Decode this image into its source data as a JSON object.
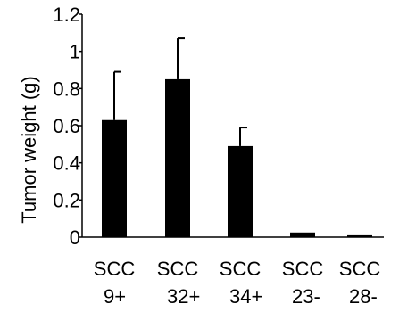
{
  "chart_data": {
    "type": "bar",
    "categories": [
      [
        "SCC",
        "9+"
      ],
      [
        "SCC",
        "32+"
      ],
      [
        "SCC",
        "34+"
      ],
      [
        "SCC",
        "23-"
      ],
      [
        "SCC",
        "28-"
      ]
    ],
    "values": [
      0.63,
      0.85,
      0.49,
      0.025,
      0.01
    ],
    "error_upper": [
      0.26,
      0.22,
      0.1,
      0.0,
      0.0
    ],
    "ylabel": "Tumor weight  (g)",
    "xlabel": "",
    "ylim": [
      0,
      1.2
    ],
    "yticks": [
      0,
      0.2,
      0.4,
      0.6,
      0.8,
      1,
      1.2
    ],
    "ytick_labels": [
      "0",
      "0.2",
      "0.4",
      "0.6",
      "0.8",
      "1",
      "1.2"
    ],
    "grid": false,
    "bar_color": "#000000"
  }
}
